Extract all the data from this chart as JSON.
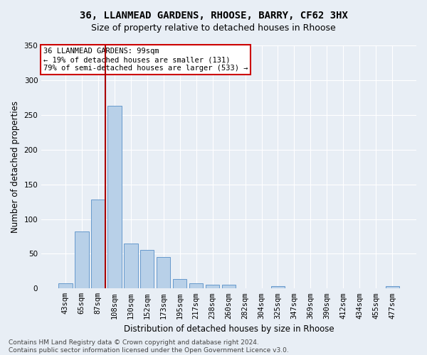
{
  "title": "36, LLANMEAD GARDENS, RHOOSE, BARRY, CF62 3HX",
  "subtitle": "Size of property relative to detached houses in Rhoose",
  "xlabel": "Distribution of detached houses by size in Rhoose",
  "ylabel": "Number of detached properties",
  "categories": [
    "43sqm",
    "65sqm",
    "87sqm",
    "108sqm",
    "130sqm",
    "152sqm",
    "173sqm",
    "195sqm",
    "217sqm",
    "238sqm",
    "260sqm",
    "282sqm",
    "304sqm",
    "325sqm",
    "347sqm",
    "369sqm",
    "390sqm",
    "412sqm",
    "434sqm",
    "455sqm",
    "477sqm"
  ],
  "values": [
    7,
    82,
    128,
    263,
    65,
    56,
    45,
    14,
    7,
    5,
    5,
    0,
    0,
    3,
    0,
    0,
    0,
    0,
    0,
    0,
    3
  ],
  "bar_color": "#b8d0e8",
  "bar_edge_color": "#6699cc",
  "ylim": [
    0,
    350
  ],
  "yticks": [
    0,
    50,
    100,
    150,
    200,
    250,
    300,
    350
  ],
  "vline_bin_index": 2,
  "annotation_text": "36 LLANMEAD GARDENS: 99sqm\n← 19% of detached houses are smaller (131)\n79% of semi-detached houses are larger (533) →",
  "annotation_box_color": "#ffffff",
  "annotation_box_edge_color": "#cc0000",
  "vline_color": "#aa0000",
  "footer": "Contains HM Land Registry data © Crown copyright and database right 2024.\nContains public sector information licensed under the Open Government Licence v3.0.",
  "bg_color": "#e8eef5",
  "plot_bg_color": "#e8eef5",
  "grid_color": "#ffffff",
  "title_fontsize": 10,
  "subtitle_fontsize": 9,
  "axis_label_fontsize": 8.5,
  "tick_fontsize": 7.5,
  "annotation_fontsize": 7.5,
  "footer_fontsize": 6.5
}
